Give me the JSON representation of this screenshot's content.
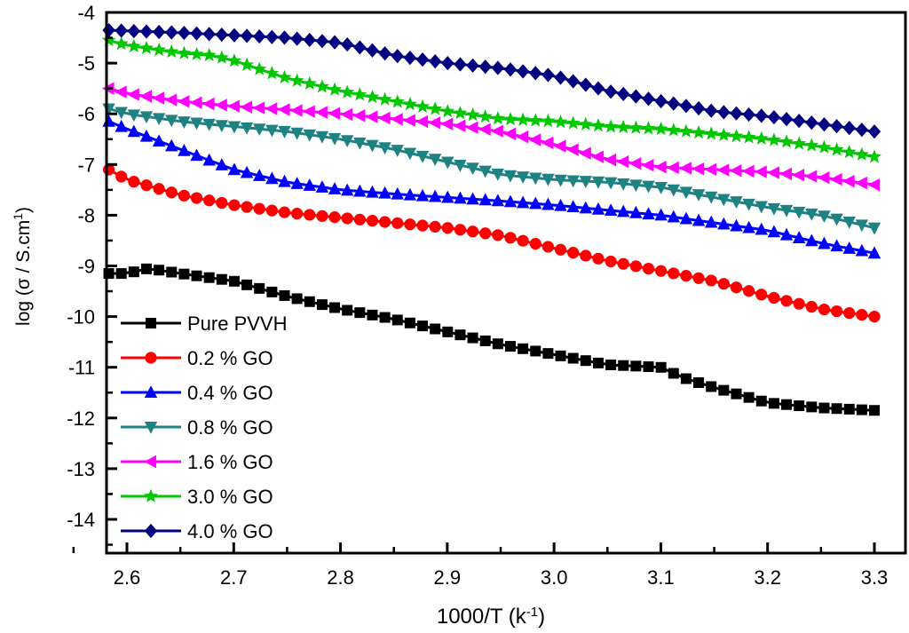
{
  "chart_data": {
    "type": "line",
    "title": "",
    "xlabel": "1000/T (k",
    "xlabel_sup": "-1",
    "xlabel_end": ")",
    "ylabel": "log (σ / S.cm",
    "ylabel_sup": "1",
    "ylabel_end": ")",
    "xlim": [
      2.54,
      3.33
    ],
    "ylim": [
      -14.7,
      -4
    ],
    "x_ticks": [
      2.6,
      2.7,
      2.8,
      2.9,
      3.0,
      3.1,
      3.2,
      3.3
    ],
    "x_tick_labels": [
      "2.6",
      "2.7",
      "2.8",
      "2.9",
      "3.0",
      "3.1",
      "3.2",
      "3.3"
    ],
    "y_ticks": [
      -4,
      -5,
      -6,
      -7,
      -8,
      -9,
      -10,
      -11,
      -12,
      -13,
      -14
    ],
    "y_tick_labels": [
      "-4",
      "-5",
      "-6",
      "-7",
      "-8",
      "-9",
      "-10",
      "-11",
      "-12",
      "-13",
      "-14"
    ],
    "grid": false,
    "legend_position": "bottom-left",
    "x_start": 2.583,
    "x_end": 3.3,
    "series": [
      {
        "name": "Pure PVVH",
        "color": "#000000",
        "marker": "square",
        "key_x": [
          2.583,
          2.6,
          2.62,
          2.65,
          2.7,
          2.75,
          2.8,
          2.85,
          2.9,
          2.95,
          3.0,
          3.05,
          3.1,
          3.12,
          3.15,
          3.2,
          3.25,
          3.3
        ],
        "key_y": [
          -9.15,
          -9.15,
          -9.05,
          -9.15,
          -9.3,
          -9.6,
          -9.85,
          -10.05,
          -10.3,
          -10.55,
          -10.75,
          -10.95,
          -11.0,
          -11.2,
          -11.4,
          -11.7,
          -11.8,
          -11.85
        ]
      },
      {
        "name": "0.2 % GO",
        "color": "#ff0000",
        "marker": "circle",
        "key_x": [
          2.583,
          2.6,
          2.65,
          2.7,
          2.75,
          2.8,
          2.85,
          2.9,
          2.95,
          3.0,
          3.05,
          3.1,
          3.15,
          3.2,
          3.25,
          3.3
        ],
        "key_y": [
          -7.1,
          -7.3,
          -7.6,
          -7.8,
          -7.95,
          -8.05,
          -8.15,
          -8.25,
          -8.4,
          -8.65,
          -8.9,
          -9.1,
          -9.3,
          -9.6,
          -9.85,
          -10.0
        ]
      },
      {
        "name": "0.4 % GO",
        "color": "#0000ff",
        "marker": "triangle-up",
        "key_x": [
          2.583,
          2.6,
          2.65,
          2.7,
          2.75,
          2.8,
          2.85,
          2.9,
          2.95,
          3.0,
          3.05,
          3.1,
          3.15,
          3.2,
          3.25,
          3.3
        ],
        "key_y": [
          -6.15,
          -6.3,
          -6.7,
          -7.1,
          -7.35,
          -7.5,
          -7.58,
          -7.65,
          -7.72,
          -7.8,
          -7.9,
          -8.0,
          -8.15,
          -8.3,
          -8.55,
          -8.75
        ]
      },
      {
        "name": "0.8 % GO",
        "color": "#1e8282",
        "marker": "triangle-down",
        "key_x": [
          2.583,
          2.6,
          2.65,
          2.7,
          2.75,
          2.8,
          2.85,
          2.9,
          2.95,
          3.0,
          3.05,
          3.1,
          3.15,
          3.2,
          3.25,
          3.3
        ],
        "key_y": [
          -5.9,
          -6.0,
          -6.15,
          -6.25,
          -6.35,
          -6.5,
          -6.7,
          -6.95,
          -7.2,
          -7.3,
          -7.35,
          -7.45,
          -7.65,
          -7.85,
          -8.0,
          -8.25
        ]
      },
      {
        "name": "1.6 % GO",
        "color": "#ff00ff",
        "marker": "triangle-left",
        "key_x": [
          2.583,
          2.6,
          2.65,
          2.7,
          2.75,
          2.8,
          2.85,
          2.9,
          2.95,
          3.0,
          3.05,
          3.1,
          3.15,
          3.2,
          3.25,
          3.3
        ],
        "key_y": [
          -5.5,
          -5.6,
          -5.75,
          -5.85,
          -5.92,
          -6.0,
          -6.1,
          -6.2,
          -6.35,
          -6.6,
          -6.9,
          -7.05,
          -7.1,
          -7.15,
          -7.25,
          -7.4
        ]
      },
      {
        "name": "3.0 % GO",
        "color": "#00c800",
        "marker": "star",
        "key_x": [
          2.583,
          2.6,
          2.65,
          2.68,
          2.7,
          2.75,
          2.8,
          2.85,
          2.9,
          2.95,
          3.0,
          3.05,
          3.1,
          3.15,
          3.2,
          3.25,
          3.3
        ],
        "key_y": [
          -4.55,
          -4.65,
          -4.8,
          -4.85,
          -4.95,
          -5.3,
          -5.55,
          -5.75,
          -5.95,
          -6.1,
          -6.15,
          -6.25,
          -6.3,
          -6.4,
          -6.5,
          -6.65,
          -6.85
        ]
      },
      {
        "name": "4.0 % GO",
        "color": "#000080",
        "marker": "diamond",
        "key_x": [
          2.583,
          2.65,
          2.7,
          2.75,
          2.8,
          2.85,
          2.9,
          2.95,
          3.0,
          3.05,
          3.1,
          3.15,
          3.2,
          3.25,
          3.3
        ],
        "key_y": [
          -4.35,
          -4.4,
          -4.45,
          -4.5,
          -4.6,
          -4.85,
          -5.0,
          -5.1,
          -5.25,
          -5.55,
          -5.75,
          -5.95,
          -6.05,
          -6.2,
          -6.35
        ]
      }
    ]
  }
}
